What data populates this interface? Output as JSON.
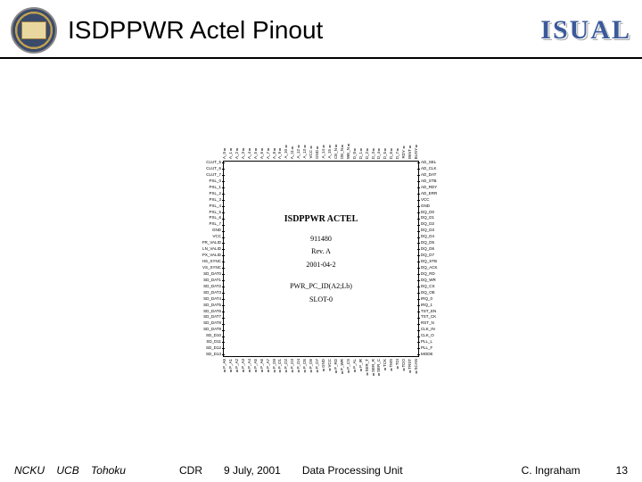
{
  "header": {
    "title": "ISDPPWR Actel Pinout",
    "logo": "ISUAL"
  },
  "chip": {
    "line1": "ISDPPWR ACTEL",
    "line2": "911480",
    "line3": "Rev. A",
    "line4": "2001-04-2",
    "line5": "PWR_PC_ID(A2;Lb)",
    "line6": "SLOT-0"
  },
  "pins": {
    "left": [
      "CLUT_5",
      "CLUT_6",
      "CLUT_7",
      "PXL_0",
      "PXL_1",
      "PXL_2",
      "PXL_3",
      "PXL_4",
      "PXL_5",
      "PXL_6",
      "PXL_7",
      "GND",
      "VCC",
      "FR_VALID",
      "LN_VALID",
      "PX_VALID",
      "HS_SYNC",
      "VS_SYNC",
      "SD_DAT0",
      "SD_DAT1",
      "SD_DAT2",
      "SD_DAT3",
      "SD_DAT4",
      "SD_DAT5",
      "SD_DAT6",
      "SD_DAT7",
      "SD_DAT8",
      "SD_DAT9",
      "SD_D10",
      "SD_D11",
      "SD_D12",
      "SD_D13"
    ],
    "right": [
      "AD_SEL",
      "AD_CLK",
      "AD_DAT",
      "AD_STB",
      "AD_RDY",
      "AD_ERR",
      "VCC",
      "GND",
      "DQ_D0",
      "DQ_D1",
      "DQ_D2",
      "DQ_D3",
      "DQ_D4",
      "DQ_D5",
      "DQ_D6",
      "DQ_D7",
      "DQ_STB",
      "DQ_ACK",
      "DQ_RD",
      "DQ_WR",
      "DQ_CS",
      "DQ_OE",
      "IRQ_0",
      "IRQ_1",
      "TST_EN",
      "TST_CK",
      "RST_N",
      "CLK_IN",
      "CLK_O",
      "PLL_L",
      "PLL_F",
      "MODE"
    ],
    "top": [
      "A_0",
      "A_1",
      "A_2",
      "A_3",
      "A_4",
      "A_5",
      "A_6",
      "A_7",
      "A_8",
      "A_9",
      "A_10",
      "A_11",
      "A_12",
      "A_13",
      "VCC",
      "GND",
      "A_14",
      "A_15",
      "CE_N",
      "OE_N",
      "WE_N",
      "D_0",
      "D_1",
      "D_2",
      "D_3",
      "D_4",
      "D_5",
      "D_6",
      "D_7",
      "RDY",
      "WAIT",
      "BUSY"
    ],
    "bottom": [
      "P_A0",
      "P_A1",
      "P_A2",
      "P_A3",
      "P_A4",
      "P_A5",
      "P_A6",
      "P_A7",
      "P_D0",
      "P_D1",
      "P_D2",
      "P_D3",
      "P_D4",
      "P_D5",
      "P_D6",
      "P_D7",
      "GND",
      "VCC",
      "P_RD",
      "P_WR",
      "P_CS",
      "P_AL",
      "P_IR",
      "SER_T",
      "SER_R",
      "SER_C",
      "TCK",
      "TMS",
      "TDI",
      "TDO",
      "TRST",
      "SCAN"
    ]
  },
  "footer": {
    "org1": "NCKU",
    "org2": "UCB",
    "org3": "Tohoku",
    "doc": "CDR",
    "date": "9 July, 2001",
    "unit": "Data Processing Unit",
    "author": "C. Ingraham",
    "page": "13"
  }
}
